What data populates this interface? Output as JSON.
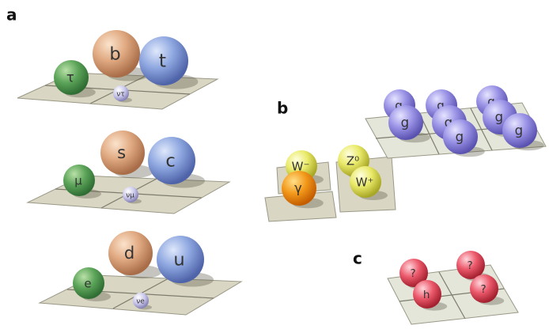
{
  "panels": [
    {
      "label": "a",
      "particles": [
        {
          "label": "τ"
        },
        {
          "label": "b"
        },
        {
          "label": "t"
        },
        {
          "label": "ντ"
        },
        {
          "label": "μ"
        },
        {
          "label": "s"
        },
        {
          "label": "c"
        },
        {
          "label": "νμ"
        },
        {
          "label": "e"
        },
        {
          "label": "d"
        },
        {
          "label": "u"
        },
        {
          "label": "νe"
        }
      ]
    },
    {
      "label": "b",
      "particles": [
        {
          "label": "W⁻"
        },
        {
          "label": "γ"
        },
        {
          "label": "Z⁰"
        },
        {
          "label": "W⁺"
        },
        {
          "label": "g"
        },
        {
          "label": "g"
        },
        {
          "label": "g"
        },
        {
          "label": "g"
        },
        {
          "label": "g"
        },
        {
          "label": "g"
        },
        {
          "label": "g"
        },
        {
          "label": "g"
        }
      ]
    },
    {
      "label": "c",
      "particles": [
        {
          "label": "?"
        },
        {
          "label": "h"
        },
        {
          "label": "?"
        },
        {
          "label": "?"
        }
      ]
    }
  ]
}
